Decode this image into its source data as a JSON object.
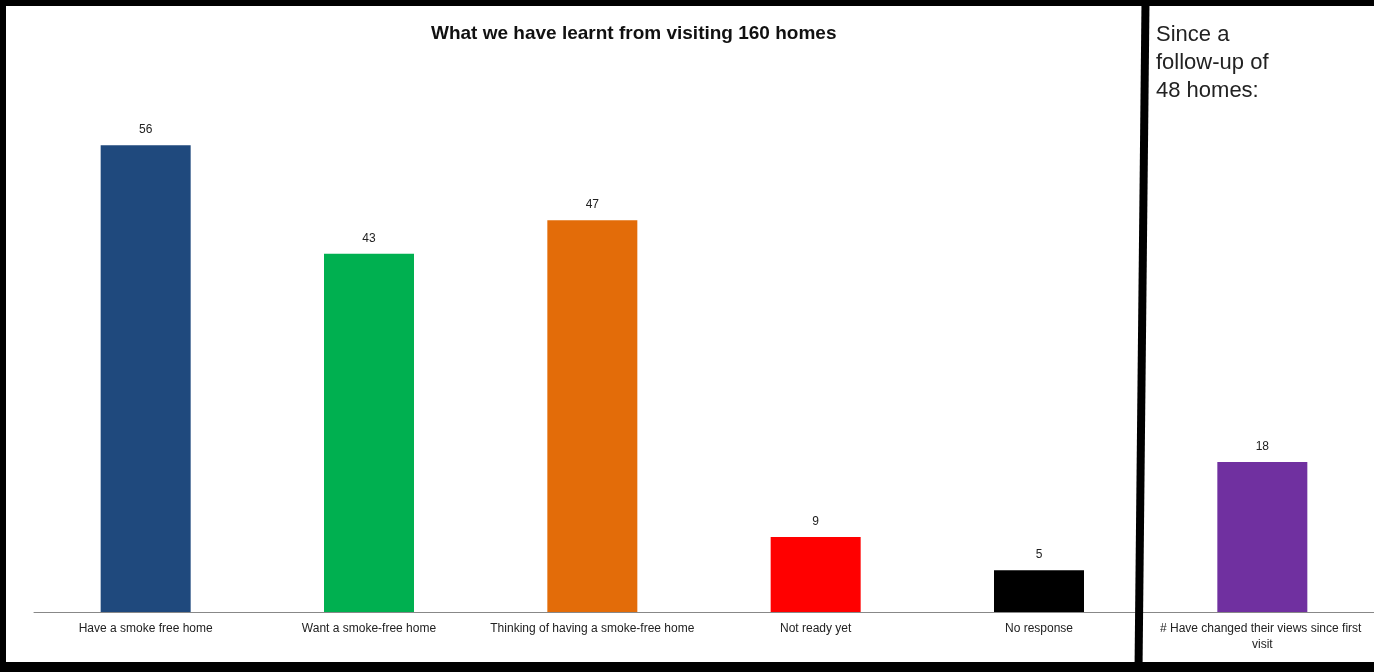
{
  "chart_data": {
    "type": "bar",
    "title": "What we have learnt from visiting 160 homes",
    "categories": [
      "Have a smoke free home",
      "Want a smoke-free home",
      "Thinking of having a smoke-free home",
      "Not ready yet",
      "No response",
      "# Have changed their views since first visit"
    ],
    "values": [
      56,
      43,
      47,
      9,
      5,
      18
    ],
    "colors": [
      "#1f497d",
      "#00b050",
      "#e36c09",
      "#ff0000",
      "#000000",
      "#7030a0"
    ],
    "data_labels": true,
    "annotations": [
      "Since a follow-up of 48 homes:"
    ]
  }
}
